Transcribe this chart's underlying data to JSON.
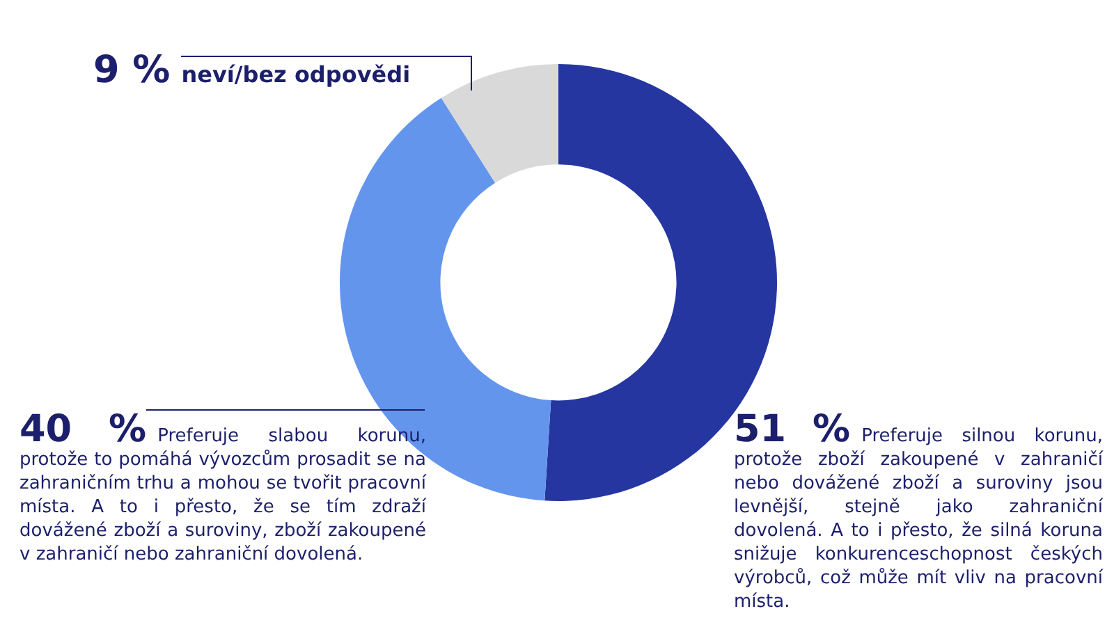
{
  "chart_data": {
    "type": "donut",
    "categories": [
      "Preferuje silnou korunu, protože zboží zakoupené v zahraničí nebo dovážené zboží a suroviny jsou levnější, stejně jako zahraniční dovolená. A to i přesto, že silná koruna snižuje konkurenceschopnost českých výrobců, což může mít vliv na pracovní místa.",
      "Preferuje slabou korunu, protože to pomáhá vývozcům prosadit se na zahraničním trhu a mohou se tvořit pracovní místa. A to i přesto, že se tím zdraží dovážené zboží a suroviny, zboží zakoupené v zahraničí nebo zahraniční dovolená.",
      "neví/bez odpovědi"
    ],
    "values": [
      51,
      40,
      9
    ],
    "value_labels": [
      "51 %",
      "40 %",
      "9 %"
    ],
    "colors": [
      "#2536a0",
      "#6495ed",
      "#d9d9d9"
    ]
  }
}
